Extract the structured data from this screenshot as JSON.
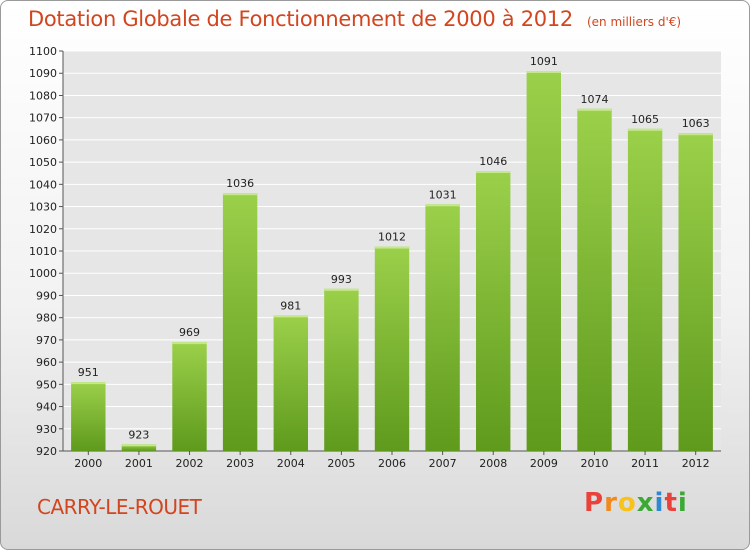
{
  "title": "Dotation Globale de Fonctionnement de 2000 à 2012",
  "unit": "(en milliers d'€)",
  "city": "CARRY-LE-ROUET",
  "logo": {
    "text": "Proxiti",
    "colors": [
      "#e8423b",
      "#f08a1c",
      "#f7c21a",
      "#3aaa35",
      "#2a8ad4",
      "#e8423b",
      "#3aaa35"
    ]
  },
  "colors": {
    "bar_top": "#9bd04a",
    "bar_bottom": "#5f9a1d",
    "title": "#d2451e",
    "grid": "#ffffff"
  },
  "chart_data": {
    "type": "bar",
    "title": "Dotation Globale de Fonctionnement de 2000 à 2012",
    "subtitle": "(en milliers d'€)",
    "categories": [
      "2000",
      "2001",
      "2002",
      "2003",
      "2004",
      "2005",
      "2006",
      "2007",
      "2008",
      "2009",
      "2010",
      "2011",
      "2012"
    ],
    "values": [
      951,
      923,
      969,
      1036,
      981,
      993,
      1012,
      1031,
      1046,
      1091,
      1074,
      1065,
      1063
    ],
    "ylim": [
      920,
      1100
    ],
    "yticks": [
      920,
      930,
      940,
      950,
      960,
      970,
      980,
      990,
      1000,
      1010,
      1020,
      1030,
      1040,
      1050,
      1060,
      1070,
      1080,
      1090,
      1100
    ],
    "grid": true,
    "xlabel": "",
    "ylabel": ""
  }
}
